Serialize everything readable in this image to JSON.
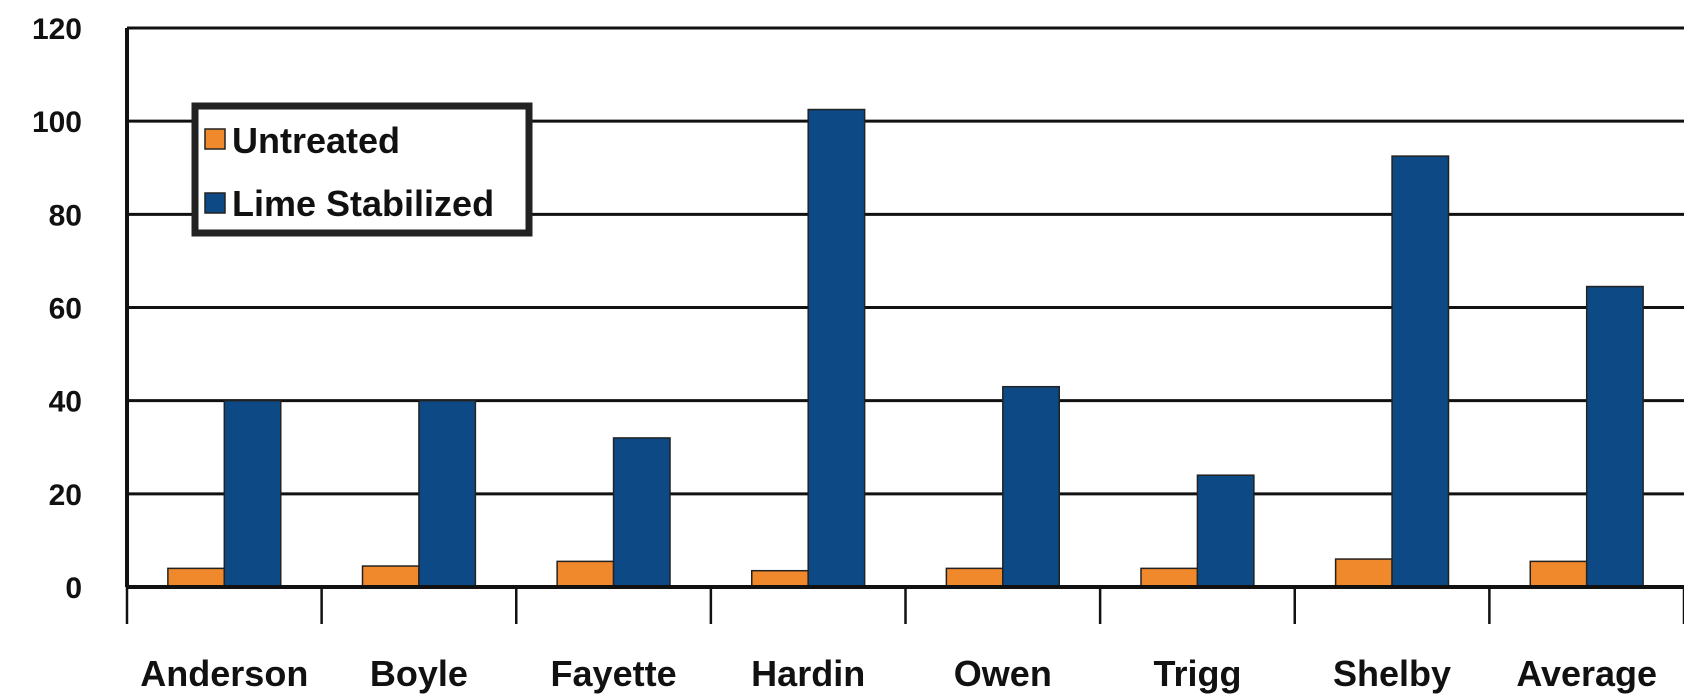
{
  "chart_data": {
    "type": "bar",
    "title": "",
    "xlabel": "",
    "ylabel": "",
    "categories": [
      "Anderson",
      "Boyle",
      "Fayette",
      "Hardin",
      "Owen",
      "Trigg",
      "Shelby",
      "Average"
    ],
    "series": [
      {
        "name": "Untreated",
        "color": "#f0882c",
        "values": [
          4,
          4.5,
          5.5,
          3.5,
          4,
          4,
          6,
          5.5
        ]
      },
      {
        "name": "Lime Stabilized",
        "color": "#0d4a85",
        "values": [
          40,
          40,
          32,
          102.5,
          43,
          24,
          92.5,
          64.5
        ]
      }
    ],
    "ylim": [
      0,
      120
    ],
    "yticks": [
      "0",
      "20",
      "40",
      "60",
      "80",
      "100",
      "120"
    ],
    "grid": true,
    "legend_position": "top-left"
  }
}
